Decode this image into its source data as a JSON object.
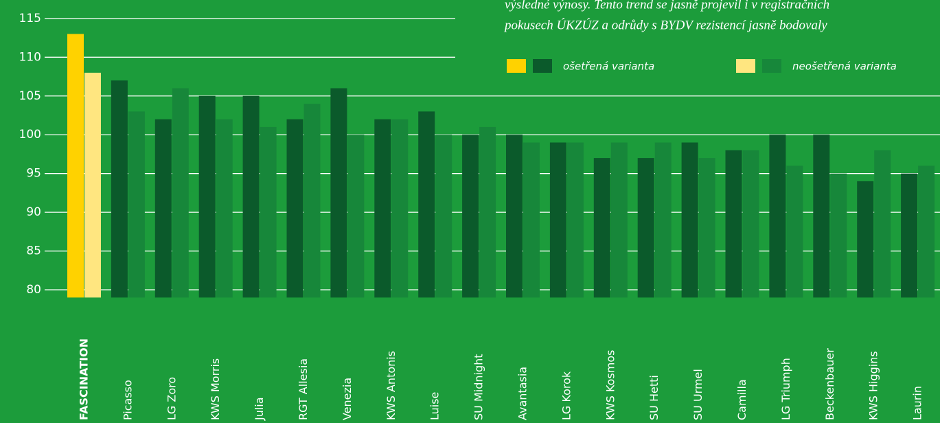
{
  "chart_data": {
    "type": "bar",
    "text_lines": [
      "výsledné výnosy. Tento trend se jasně projevil i v registračních",
      "pokusech ÚKZÚZ a odrůdy s BYDV rezistencí jasně bodovaly"
    ],
    "categories": [
      "FASCINATION",
      "Picasso",
      "LG Zoro",
      "KWS Morris",
      "Julia",
      "RGT Allesia",
      "Venezia",
      "KWS Antonis",
      "Luise",
      "SU Midnight",
      "Avantasia",
      "LG Korok",
      "KWS Kosmos",
      "SU Hetti",
      "SU Urmel",
      "Camilla",
      "LG Triumph",
      "Beckenbauer",
      "KWS Higgins",
      "Laurin"
    ],
    "highlight": "FASCINATION",
    "series": [
      {
        "name": "ošetřená varianta",
        "color": "#0b5a2b",
        "highlight_color": "#ffd200",
        "values": [
          113,
          107,
          102,
          105,
          105,
          102,
          106,
          102,
          103,
          100,
          100,
          99,
          97,
          97,
          99,
          98,
          100,
          100,
          94,
          95
        ]
      },
      {
        "name": "neošetřená varianta",
        "color": "#17873a",
        "highlight_color": "#ffe680",
        "values": [
          108,
          103,
          106,
          102,
          101,
          104,
          100,
          102,
          100,
          101,
          99,
          99,
          99,
          99,
          97,
          98,
          96,
          95,
          98,
          96
        ]
      }
    ],
    "ylim": [
      79,
      117
    ],
    "yticks": [
      80,
      85,
      90,
      95,
      100,
      105,
      110,
      115
    ],
    "grid": true,
    "background": "#1c9c3b"
  }
}
